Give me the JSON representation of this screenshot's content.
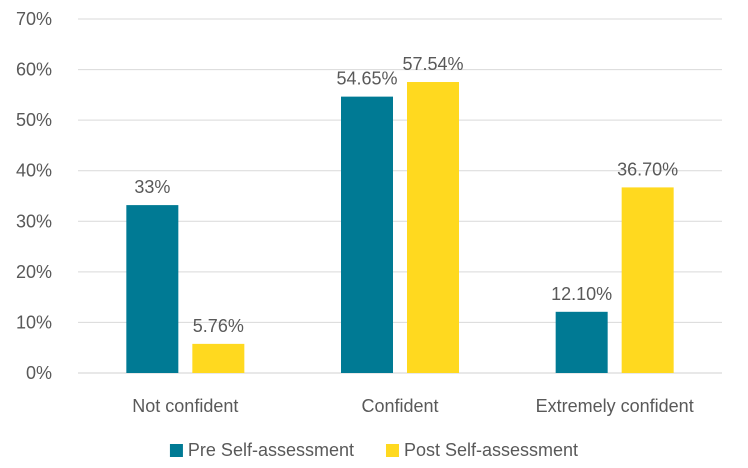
{
  "chart_data": {
    "type": "bar",
    "categories": [
      "Not confident",
      "Confident",
      "Extremely confident"
    ],
    "series": [
      {
        "name": "Pre Self-assessment",
        "values": [
          33.2,
          54.65,
          12.1
        ],
        "labels": [
          "33%",
          "54.65%",
          "12.10%"
        ],
        "color": "#007A94"
      },
      {
        "name": "Post Self-assessment",
        "values": [
          5.76,
          57.54,
          36.7
        ],
        "labels": [
          "5.76%",
          "57.54%",
          "36.70%"
        ],
        "color": "#FFD91F"
      }
    ],
    "ylim": [
      0,
      70
    ],
    "yticks": [
      0,
      10,
      20,
      30,
      40,
      50,
      60,
      70
    ],
    "ytick_labels": [
      "0%",
      "10%",
      "20%",
      "30%",
      "40%",
      "50%",
      "60%",
      "70%"
    ],
    "grid": true,
    "legend_position": "bottom",
    "title": "",
    "xlabel": "",
    "ylabel": ""
  }
}
